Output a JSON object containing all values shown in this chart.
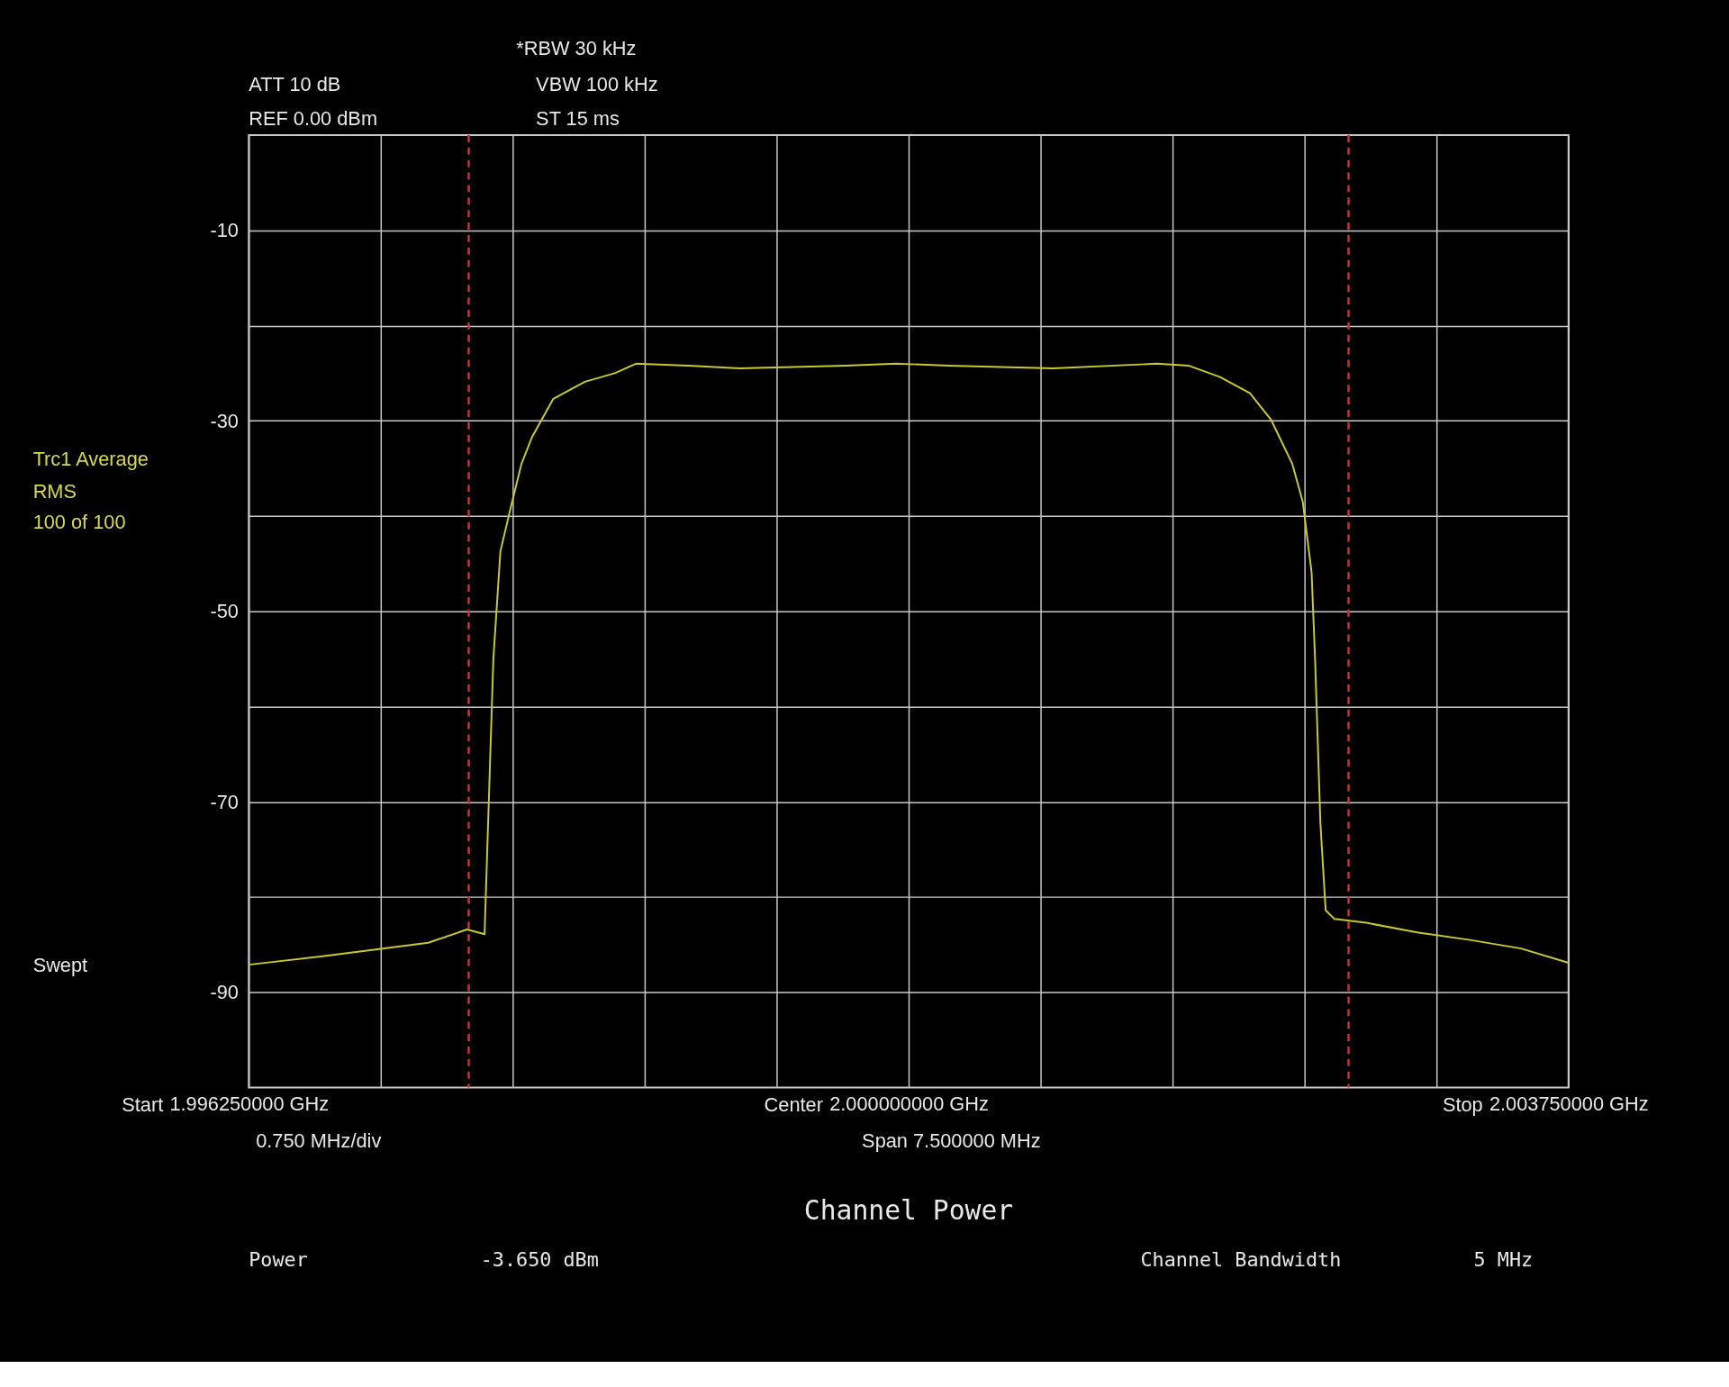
{
  "chart_data": {
    "type": "line",
    "series": [
      {
        "color": "#c8c832",
        "x": [
          1.99625,
          1.99668,
          1.99697,
          1.99727,
          1.99749,
          1.99759,
          1.99762,
          1.99764,
          1.99768,
          1.99774,
          1.9978,
          1.99786,
          1.99798,
          1.99816,
          1.99833,
          1.99845,
          1.99875,
          1.99904,
          1.99964,
          1.99993,
          2.00023,
          2.00082,
          2.00141,
          2.00159,
          2.00177,
          2.00194,
          2.00206,
          2.00218,
          2.00224,
          2.00229,
          2.00231,
          2.00234,
          2.00237,
          2.00242,
          2.0026,
          2.00289,
          2.00319,
          2.00348,
          2.00375
        ],
        "values": [
          -87.1,
          -86.2,
          -85.5,
          -84.8,
          -83.4,
          -83.9,
          -66.5,
          -55.0,
          -43.7,
          -39.0,
          -34.5,
          -31.7,
          -27.7,
          -25.9,
          -25.0,
          -24.0,
          -24.2,
          -24.5,
          -24.2,
          -24.0,
          -24.2,
          -24.5,
          -24.0,
          -24.2,
          -25.4,
          -27.1,
          -29.9,
          -34.5,
          -38.5,
          -45.9,
          -55.1,
          -72.2,
          -81.4,
          -82.3,
          -82.7,
          -83.7,
          -84.5,
          -85.4,
          -86.9
        ]
      }
    ],
    "xlim": [
      1.99625,
      2.00375
    ],
    "xticks": [
      {
        "value": 1.99625,
        "label": "1.996250000 GHz"
      },
      {
        "value": 1.997,
        "label": null
      },
      {
        "value": 1.99775,
        "label": null
      },
      {
        "value": 1.9985,
        "label": null
      },
      {
        "value": 1.99925,
        "label": null
      },
      {
        "value": 2.0,
        "label": "2.000000000 GHz"
      },
      {
        "value": 2.00075,
        "label": null
      },
      {
        "value": 2.0015,
        "label": null
      },
      {
        "value": 2.00225,
        "label": null
      },
      {
        "value": 2.003,
        "label": null
      },
      {
        "value": 2.00375,
        "label": "2.003750000 GHz"
      }
    ],
    "ylim": [
      -100,
      0
    ],
    "yticks": [
      -90,
      {
        "value": -80,
        "label": null
      },
      -70,
      {
        "value": -60,
        "label": null
      },
      -50,
      {
        "value": -40,
        "label": null
      },
      -30,
      {
        "value": -20,
        "label": null
      },
      -10
    ],
    "grid": true,
    "ref_lines": [
      {
        "axis": "x",
        "value": 1.9975,
        "color": "#c83232",
        "line_style": "dashed"
      },
      {
        "axis": "x",
        "value": 2.0025,
        "color": "#c83232",
        "line_style": "dashed"
      }
    ],
    "annotations": [
      "ATT 10 dB",
      "REF  0.00 dBm",
      "*RBW  30 kHz",
      "VBW 100 kHz",
      "ST    15 ms",
      "Trc1 Average",
      "RMS",
      "100 of 100",
      "Swept",
      "0.750 MHz/div",
      "Span 7.500000 MHz",
      "Channel Power",
      "Power",
      "-3.650 dBm",
      "Channel Bandwidth",
      "5 MHz",
      "Start",
      "Center",
      "Stop"
    ]
  }
}
